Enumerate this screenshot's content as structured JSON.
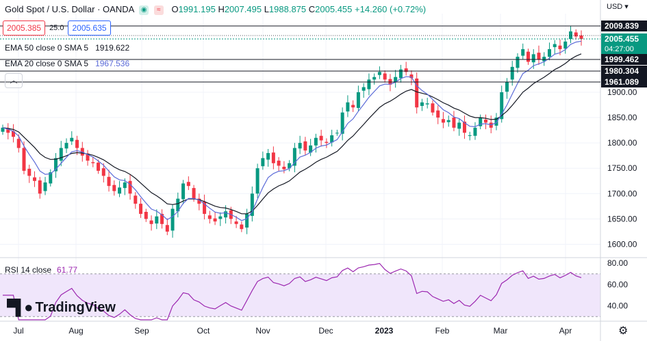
{
  "header": {
    "title": "Gold Spot / U.S. Dollar · OANDA",
    "ohlc": {
      "o_label": "O",
      "o": "1991.195",
      "h_label": "H",
      "h": "2007.495",
      "l_label": "L",
      "l": "1988.875",
      "c_label": "C",
      "c": "2005.455",
      "change": "+14.260 (+0.72%)"
    },
    "icons": [
      "dot-circle-icon",
      "wave-icon"
    ]
  },
  "quote": {
    "bid": "2005.385",
    "spread": "25.0",
    "ask": "2005.635"
  },
  "indicators": {
    "ema50_label": "EMA 50 close 0 SMA 5",
    "ema50_value": "1919.622",
    "ema20_label": "EMA 20 close 0 SMA 5",
    "ema20_value": "1967.536"
  },
  "rsi": {
    "label": "RSI 14 close",
    "value": "61.77"
  },
  "currency": "USD",
  "brand": "TradingView",
  "colors": {
    "up": "#089981",
    "down": "#f23645",
    "ema20": "#5b6bd8",
    "ema50": "#131722",
    "rsi": "#9c27b0",
    "rsi_band": "#f0e6fb"
  },
  "price_tags": [
    {
      "value": "2009.839",
      "dark": true
    },
    {
      "value": "2005.455",
      "sub": "04:27:00",
      "green": true
    },
    {
      "value": "1999.462",
      "dark": true
    },
    {
      "value": "1980.304",
      "dark": true
    },
    {
      "value": "1961.089",
      "dark": true
    }
  ],
  "chart_data": {
    "type": "candlestick",
    "y_ticks": [
      1600,
      1650,
      1700,
      1750,
      1800,
      1850,
      1900
    ],
    "ylim": [
      1575,
      2055
    ],
    "x_labels": [
      "Jul",
      "Aug",
      "Sep",
      "Oct",
      "Nov",
      "Dec",
      "2023",
      "Feb",
      "Mar",
      "Apr"
    ],
    "rsi_ticks": [
      40,
      60,
      80
    ],
    "rsi_ylim": [
      27,
      82
    ],
    "rsi_band": [
      30,
      70
    ],
    "closes": [
      1830,
      1820,
      1812,
      1790,
      1745,
      1735,
      1725,
      1700,
      1722,
      1742,
      1770,
      1790,
      1800,
      1810,
      1790,
      1775,
      1765,
      1760,
      1745,
      1735,
      1715,
      1705,
      1712,
      1722,
      1700,
      1680,
      1660,
      1650,
      1640,
      1655,
      1640,
      1625,
      1670,
      1690,
      1720,
      1715,
      1690,
      1680,
      1660,
      1650,
      1645,
      1655,
      1665,
      1650,
      1640,
      1630,
      1660,
      1700,
      1750,
      1770,
      1780,
      1760,
      1755,
      1748,
      1760,
      1790,
      1800,
      1785,
      1795,
      1810,
      1805,
      1800,
      1815,
      1820,
      1860,
      1880,
      1870,
      1900,
      1910,
      1925,
      1930,
      1940,
      1925,
      1915,
      1930,
      1945,
      1940,
      1928,
      1870,
      1880,
      1878,
      1860,
      1850,
      1840,
      1845,
      1830,
      1840,
      1820,
      1815,
      1830,
      1850,
      1840,
      1830,
      1850,
      1900,
      1920,
      1950,
      1970,
      1985,
      1960,
      1975,
      1965,
      1970,
      1985,
      1995,
      1985,
      2000,
      2020,
      2010,
      2005
    ]
  }
}
